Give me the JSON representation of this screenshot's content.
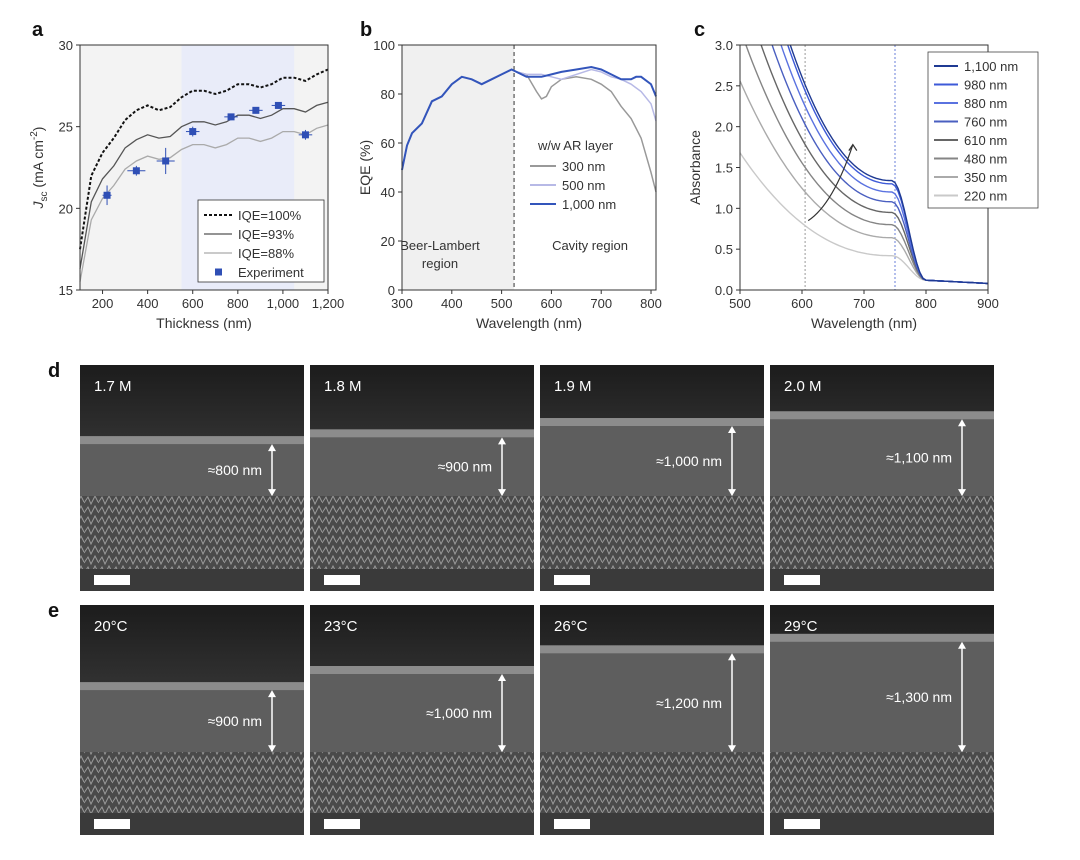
{
  "panel_labels": [
    "a",
    "b",
    "c",
    "d",
    "e"
  ],
  "chart_data": [
    {
      "id": "a",
      "type": "line",
      "xlabel": "Thickness (nm)",
      "ylabel": "J_sc (mA cm^-2)",
      "ylabel_main": "J",
      "ylabel_sub": "sc",
      "ylabel_unit": " (mA cm",
      "ylabel_sup": "-2",
      "ylabel_close": ")",
      "xlim": [
        100,
        1200
      ],
      "ylim": [
        15,
        30
      ],
      "xticks": [
        200,
        400,
        600,
        800,
        1000,
        1200
      ],
      "xtick_labels": [
        "200",
        "400",
        "600",
        "800",
        "1,000",
        "1,200"
      ],
      "yticks": [
        15,
        20,
        25,
        30
      ],
      "ytick_labels": [
        "15",
        "20",
        "25",
        "30"
      ],
      "shaded_x": [
        100,
        1200
      ],
      "highlight_x": [
        550,
        1050
      ],
      "series": [
        {
          "name": "IQE=100%",
          "style": "dotted",
          "color": "#111111",
          "x": [
            100,
            150,
            200,
            250,
            300,
            350,
            400,
            450,
            500,
            550,
            600,
            650,
            700,
            750,
            800,
            850,
            900,
            950,
            1000,
            1050,
            1100,
            1150,
            1200
          ],
          "y": [
            17.5,
            22.0,
            23.4,
            24.3,
            25.4,
            26.0,
            26.3,
            26.0,
            26.2,
            26.8,
            27.2,
            27.2,
            27.0,
            27.2,
            27.6,
            27.6,
            27.4,
            27.6,
            28.0,
            28.0,
            27.8,
            28.2,
            28.5
          ]
        },
        {
          "name": "IQE=93%",
          "style": "solid",
          "color": "#555555",
          "x": [
            100,
            150,
            200,
            250,
            300,
            350,
            400,
            450,
            500,
            550,
            600,
            650,
            700,
            750,
            800,
            850,
            900,
            950,
            1000,
            1050,
            1100,
            1150,
            1200
          ],
          "y": [
            16.3,
            20.4,
            21.8,
            22.6,
            23.7,
            24.2,
            24.5,
            24.3,
            24.4,
            25.0,
            25.3,
            25.3,
            25.1,
            25.3,
            25.7,
            25.7,
            25.5,
            25.7,
            26.1,
            26.1,
            25.9,
            26.3,
            26.5
          ]
        },
        {
          "name": "IQE=88%",
          "style": "solid",
          "color": "#aaaaaa",
          "x": [
            100,
            150,
            200,
            250,
            300,
            350,
            400,
            450,
            500,
            550,
            600,
            650,
            700,
            750,
            800,
            850,
            900,
            950,
            1000,
            1050,
            1100,
            1150,
            1200
          ],
          "y": [
            15.5,
            19.3,
            20.6,
            21.4,
            22.4,
            22.9,
            23.2,
            23.0,
            23.1,
            23.6,
            23.9,
            23.9,
            23.7,
            23.9,
            24.3,
            24.3,
            24.1,
            24.3,
            24.7,
            24.7,
            24.5,
            24.9,
            25.1
          ]
        }
      ],
      "experiment": {
        "name": "Experiment",
        "color": "#2f4fb5",
        "points": [
          {
            "x": 220,
            "y": 20.8,
            "xerr": 20,
            "yerr": 0.6
          },
          {
            "x": 350,
            "y": 22.3,
            "xerr": 40,
            "yerr": 0.3
          },
          {
            "x": 480,
            "y": 22.9,
            "xerr": 40,
            "yerr": 0.8
          },
          {
            "x": 600,
            "y": 24.7,
            "xerr": 30,
            "yerr": 0.3
          },
          {
            "x": 770,
            "y": 25.6,
            "xerr": 30,
            "yerr": 0.2
          },
          {
            "x": 880,
            "y": 26.0,
            "xerr": 30,
            "yerr": 0.2
          },
          {
            "x": 980,
            "y": 26.3,
            "xerr": 30,
            "yerr": 0.2
          },
          {
            "x": 1100,
            "y": 24.5,
            "xerr": 30,
            "yerr": 0.3
          }
        ]
      }
    },
    {
      "id": "b",
      "type": "line",
      "xlabel": "Wavelength (nm)",
      "ylabel": "EQE (%)",
      "xlim": [
        300,
        810
      ],
      "ylim": [
        0,
        100
      ],
      "xticks": [
        300,
        400,
        500,
        600,
        700,
        800
      ],
      "xtick_labels": [
        "300",
        "400",
        "500",
        "600",
        "700",
        "800"
      ],
      "yticks": [
        0,
        20,
        40,
        60,
        80,
        100
      ],
      "ytick_labels": [
        "0",
        "20",
        "40",
        "60",
        "80",
        "100"
      ],
      "divider_x": 525,
      "shaded_x": [
        300,
        525
      ],
      "region_labels": {
        "left_line1": "Beer-Lambert",
        "left_line2": "region",
        "right": "Cavity region"
      },
      "legend_title": "w/w AR layer",
      "series": [
        {
          "name": "300 nm",
          "color": "#999999",
          "x": [
            300,
            310,
            320,
            340,
            360,
            380,
            400,
            420,
            440,
            460,
            480,
            500,
            520,
            530,
            550,
            570,
            580,
            590,
            600,
            620,
            650,
            680,
            700,
            720,
            740,
            760,
            780,
            800,
            810
          ],
          "y": [
            49,
            59,
            64,
            68,
            77,
            79,
            84,
            87,
            86,
            84,
            86,
            88,
            90,
            89,
            88,
            81,
            78,
            79,
            83,
            86,
            87,
            86,
            84,
            81,
            75,
            70,
            62,
            48,
            40
          ]
        },
        {
          "name": "500 nm",
          "color": "#b7b9e6",
          "x": [
            300,
            310,
            320,
            340,
            360,
            380,
            400,
            420,
            440,
            460,
            480,
            500,
            520,
            530,
            550,
            580,
            600,
            620,
            650,
            680,
            700,
            720,
            740,
            760,
            780,
            800,
            810
          ],
          "y": [
            49,
            59,
            64,
            68,
            77,
            79,
            84,
            87,
            86,
            84,
            86,
            88,
            90,
            89,
            88,
            88,
            87,
            86,
            88,
            90,
            89,
            87,
            86,
            84,
            81,
            76,
            69
          ]
        },
        {
          "name": "1,000 nm",
          "color": "#3355bb",
          "x": [
            300,
            310,
            320,
            340,
            360,
            380,
            400,
            420,
            440,
            460,
            480,
            500,
            520,
            530,
            550,
            580,
            600,
            620,
            650,
            680,
            700,
            720,
            740,
            760,
            770,
            780,
            800,
            810
          ],
          "y": [
            49,
            59,
            64,
            68,
            77,
            79,
            84,
            87,
            86,
            84,
            86,
            88,
            90,
            89,
            87,
            87,
            88,
            89,
            90,
            91,
            90,
            88,
            86,
            86,
            87,
            87,
            84,
            79
          ]
        }
      ]
    },
    {
      "id": "c",
      "type": "line",
      "xlabel": "Wavelength (nm)",
      "ylabel": "Absorbance",
      "xlim": [
        500,
        900
      ],
      "ylim": [
        0,
        3.0
      ],
      "xticks": [
        500,
        600,
        700,
        800,
        900
      ],
      "xtick_labels": [
        "500",
        "600",
        "700",
        "800",
        "900"
      ],
      "yticks": [
        0,
        0.5,
        1.0,
        1.5,
        2.0,
        2.5,
        3.0
      ],
      "ytick_labels": [
        "0.0",
        "0.5",
        "1.0",
        "1.5",
        "2.0",
        "2.5",
        "3.0"
      ],
      "ref_lines": [
        605,
        750
      ],
      "series": [
        {
          "name": "1,100 nm",
          "color": "#1f3a93",
          "level": 1.34
        },
        {
          "name": "980 nm",
          "color": "#3d5ad8",
          "level": 1.3
        },
        {
          "name": "880 nm",
          "color": "#5a72e0",
          "level": 1.2
        },
        {
          "name": "760 nm",
          "color": "#4a5fc0",
          "level": 1.08
        },
        {
          "name": "610 nm",
          "color": "#666666",
          "level": 0.95
        },
        {
          "name": "480 nm",
          "color": "#858585",
          "level": 0.8
        },
        {
          "name": "350 nm",
          "color": "#aaaaaa",
          "level": 0.64
        },
        {
          "name": "220 nm",
          "color": "#c9c9c9",
          "level": 0.42
        }
      ]
    }
  ],
  "sem_rows": [
    {
      "id": "d",
      "items": [
        {
          "label": "1.7 M",
          "measure": "≈800 nm",
          "film_top": 0.35,
          "film_bottom": 0.58,
          "arrow_top": 0.35,
          "arrow_bottom": 0.58
        },
        {
          "label": "1.8 M",
          "measure": "≈900 nm",
          "film_top": 0.32,
          "film_bottom": 0.58,
          "arrow_top": 0.32,
          "arrow_bottom": 0.58
        },
        {
          "label": "1.9 M",
          "measure": "≈1,000 nm",
          "film_top": 0.27,
          "film_bottom": 0.58,
          "arrow_top": 0.27,
          "arrow_bottom": 0.58
        },
        {
          "label": "2.0 M",
          "measure": "≈1,100 nm",
          "film_top": 0.24,
          "film_bottom": 0.58,
          "arrow_top": 0.24,
          "arrow_bottom": 0.58
        }
      ]
    },
    {
      "id": "e",
      "items": [
        {
          "label": "20°C",
          "measure": "≈900 nm",
          "film_top": 0.37,
          "film_bottom": 0.64,
          "arrow_top": 0.37,
          "arrow_bottom": 0.64
        },
        {
          "label": "23°C",
          "measure": "≈1,000 nm",
          "film_top": 0.3,
          "film_bottom": 0.64,
          "arrow_top": 0.3,
          "arrow_bottom": 0.64
        },
        {
          "label": "26°C",
          "measure": "≈1,200 nm",
          "film_top": 0.21,
          "film_bottom": 0.64,
          "arrow_top": 0.21,
          "arrow_bottom": 0.64
        },
        {
          "label": "29°C",
          "measure": "≈1,300 nm",
          "film_top": 0.16,
          "film_bottom": 0.64,
          "arrow_top": 0.16,
          "arrow_bottom": 0.64
        }
      ]
    }
  ]
}
